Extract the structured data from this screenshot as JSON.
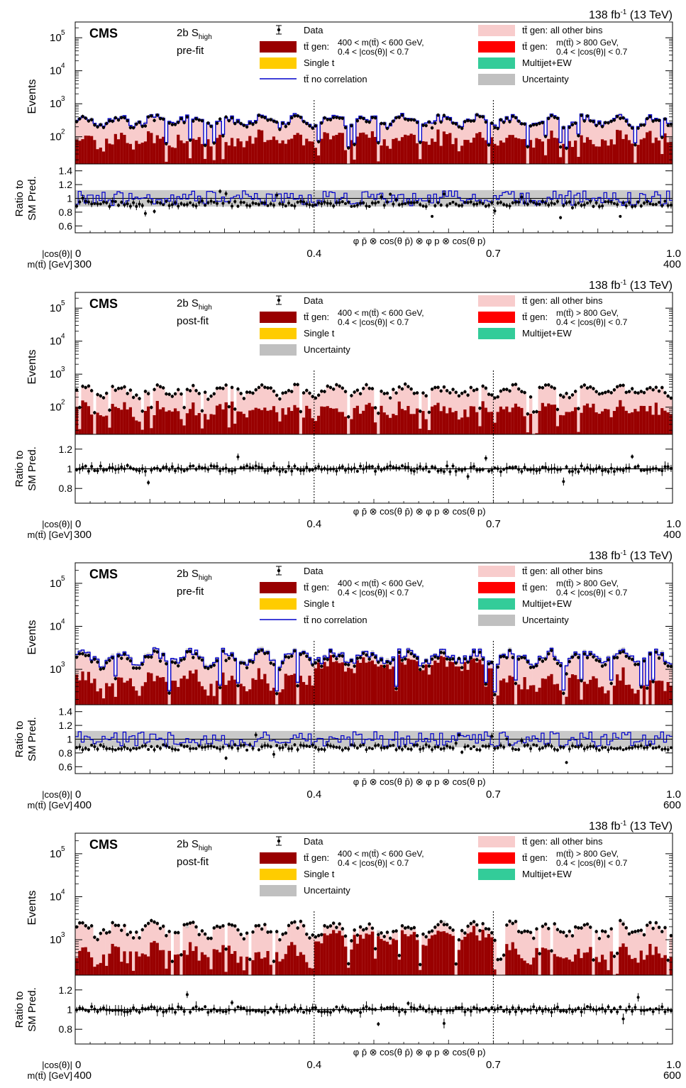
{
  "chart_data": [
    {
      "type": "bar",
      "lumi": "138 fb",
      "lumi_sup": "-1",
      "energy": "(13 TeV)",
      "experiment": "CMS",
      "category": "2b S",
      "category_sub": "high",
      "stage": "pre-fit",
      "ylabel": "Events",
      "ratio_ylabel": [
        "Ratio to",
        "SM Pred."
      ],
      "ylim": [
        15,
        300000
      ],
      "yscale": "log",
      "yticks": [
        {
          "v": 100,
          "e": "2"
        },
        {
          "v": 1000,
          "e": "3"
        },
        {
          "v": 10000,
          "e": "4"
        },
        {
          "v": 100000,
          "e": "5"
        }
      ],
      "ratio_ylim": [
        0.5,
        1.5
      ],
      "ratio_ticks": [
        "0.6",
        "0.8",
        "1",
        "1.2",
        "1.4"
      ],
      "xlabel": "φ p̄ ⊗ cos(θ p̄) ⊗ φ p ⊗ cos(θ p)",
      "dividers": [
        "0.4",
        "0.7"
      ],
      "bottom_label1": "|cos(θ)|",
      "bottom_label2": "m(tt̄) [GeV]",
      "x_left": "0",
      "x_right": "1.0",
      "m_low": "300",
      "m_high": "400",
      "nbins": 200,
      "base_level": 400,
      "data_ratio_center": 0.92,
      "band_half": 0.12,
      "no_corr": true,
      "legend": [
        {
          "col": 0,
          "key": "data",
          "label": "Data"
        },
        {
          "col": 0,
          "key": "darkred",
          "label": "tt̄ gen:",
          "extra1": "400 < m(tt̄) < 600 GeV,",
          "extra2": "0.4 < |cos(θ)| < 0.7"
        },
        {
          "col": 0,
          "key": "singlet",
          "label": "Single t"
        },
        {
          "col": 0,
          "key": "nocorr",
          "label": "tt̄ no correlation"
        },
        {
          "col": 1,
          "key": "pink",
          "label": "tt̄ gen: all other bins"
        },
        {
          "col": 1,
          "key": "red",
          "label": "tt̄ gen:",
          "extra1": "m(tt̄) > 800 GeV,",
          "extra2": "0.4 < |cos(θ)| < 0.7"
        },
        {
          "col": 1,
          "key": "multijet",
          "label": "Multijet+EW"
        },
        {
          "col": 1,
          "key": "unc",
          "label": "Uncertainty"
        }
      ]
    },
    {
      "type": "bar",
      "lumi": "138 fb",
      "lumi_sup": "-1",
      "energy": "(13 TeV)",
      "experiment": "CMS",
      "category": "2b S",
      "category_sub": "high",
      "stage": "post-fit",
      "ylabel": "Events",
      "ratio_ylabel": [
        "Ratio to",
        "SM Pred."
      ],
      "ylim": [
        15,
        300000
      ],
      "yscale": "log",
      "yticks": [
        {
          "v": 100,
          "e": "2"
        },
        {
          "v": 1000,
          "e": "3"
        },
        {
          "v": 10000,
          "e": "4"
        },
        {
          "v": 100000,
          "e": "5"
        }
      ],
      "ratio_ylim": [
        0.65,
        1.35
      ],
      "ratio_ticks": [
        "0.8",
        "1",
        "1.2"
      ],
      "xlabel": "φ p̄ ⊗ cos(θ p̄) ⊗ φ p ⊗ cos(θ p)",
      "dividers": [
        "0.4",
        "0.7"
      ],
      "bottom_label1": "|cos(θ)|",
      "bottom_label2": "m(tt̄) [GeV]",
      "x_left": "0",
      "x_right": "1.0",
      "m_low": "300",
      "m_high": "400",
      "nbins": 200,
      "base_level": 400,
      "data_ratio_center": 1.0,
      "band_half": 0.01,
      "no_corr": false,
      "legend": [
        {
          "col": 0,
          "key": "data",
          "label": "Data"
        },
        {
          "col": 0,
          "key": "darkred",
          "label": "tt̄ gen:",
          "extra1": "400 < m(tt̄) < 600 GeV,",
          "extra2": "0.4 < |cos(θ)| < 0.7"
        },
        {
          "col": 0,
          "key": "singlet",
          "label": "Single t"
        },
        {
          "col": 0,
          "key": "unc",
          "label": "Uncertainty"
        },
        {
          "col": 1,
          "key": "pink",
          "label": "tt̄ gen: all other bins"
        },
        {
          "col": 1,
          "key": "red",
          "label": "tt̄ gen:",
          "extra1": "m(tt̄) > 800 GeV,",
          "extra2": "0.4 < |cos(θ)| < 0.7"
        },
        {
          "col": 1,
          "key": "multijet",
          "label": "Multijet+EW"
        }
      ]
    },
    {
      "type": "bar",
      "lumi": "138 fb",
      "lumi_sup": "-1",
      "energy": "(13 TeV)",
      "experiment": "CMS",
      "category": "2b S",
      "category_sub": "high",
      "stage": "pre-fit",
      "ylabel": "Events",
      "ratio_ylabel": [
        "Ratio to",
        "SM Pred."
      ],
      "ylim": [
        150,
        300000
      ],
      "yscale": "log",
      "yticks": [
        {
          "v": 1000,
          "e": "3"
        },
        {
          "v": 10000,
          "e": "4"
        },
        {
          "v": 100000,
          "e": "5"
        }
      ],
      "ratio_ylim": [
        0.5,
        1.5
      ],
      "ratio_ticks": [
        "0.6",
        "0.8",
        "1",
        "1.2",
        "1.4"
      ],
      "xlabel": "φ p̄ ⊗ cos(θ p̄) ⊗ φ p ⊗ cos(θ p)",
      "dividers": [
        "0.4",
        "0.7"
      ],
      "bottom_label1": "|cos(θ)|",
      "bottom_label2": "m(tt̄) [GeV]",
      "x_left": "0",
      "x_right": "1.0",
      "m_low": "400",
      "m_high": "600",
      "nbins": 200,
      "base_level": 2500,
      "data_ratio_center": 0.88,
      "band_half": 0.12,
      "no_corr": true,
      "middle_dark": true,
      "legend": [
        {
          "col": 0,
          "key": "data",
          "label": "Data"
        },
        {
          "col": 0,
          "key": "darkred",
          "label": "tt̄ gen:",
          "extra1": "400 < m(tt̄) < 600 GeV,",
          "extra2": "0.4 < |cos(θ)| < 0.7"
        },
        {
          "col": 0,
          "key": "singlet",
          "label": "Single t"
        },
        {
          "col": 0,
          "key": "nocorr",
          "label": "tt̄ no correlation"
        },
        {
          "col": 1,
          "key": "pink",
          "label": "tt̄ gen: all other bins"
        },
        {
          "col": 1,
          "key": "red",
          "label": "tt̄ gen:",
          "extra1": "m(tt̄) > 800 GeV,",
          "extra2": "0.4 < |cos(θ)| < 0.7"
        },
        {
          "col": 1,
          "key": "multijet",
          "label": "Multijet+EW"
        },
        {
          "col": 1,
          "key": "unc",
          "label": "Uncertainty"
        }
      ]
    },
    {
      "type": "bar",
      "lumi": "138 fb",
      "lumi_sup": "-1",
      "energy": "(13 TeV)",
      "experiment": "CMS",
      "category": "2b S",
      "category_sub": "high",
      "stage": "post-fit",
      "ylabel": "Events",
      "ratio_ylabel": [
        "Ratio to",
        "SM Pred."
      ],
      "ylim": [
        150,
        300000
      ],
      "yscale": "log",
      "yticks": [
        {
          "v": 1000,
          "e": "3"
        },
        {
          "v": 10000,
          "e": "4"
        },
        {
          "v": 100000,
          "e": "5"
        }
      ],
      "ratio_ylim": [
        0.65,
        1.35
      ],
      "ratio_ticks": [
        "0.8",
        "1",
        "1.2"
      ],
      "xlabel": "φ p̄ ⊗ cos(θ p̄) ⊗ φ p ⊗ cos(θ p)",
      "dividers": [
        "0.4",
        "0.7"
      ],
      "bottom_label1": "|cos(θ)|",
      "bottom_label2": "m(tt̄) [GeV]",
      "x_left": "0",
      "x_right": "1.0",
      "m_low": "400",
      "m_high": "600",
      "nbins": 200,
      "base_level": 2200,
      "data_ratio_center": 1.0,
      "band_half": 0.01,
      "no_corr": false,
      "middle_dark": true,
      "legend": [
        {
          "col": 0,
          "key": "data",
          "label": "Data"
        },
        {
          "col": 0,
          "key": "darkred",
          "label": "tt̄ gen:",
          "extra1": "400 < m(tt̄) < 600 GeV,",
          "extra2": "0.4 < |cos(θ)| < 0.7"
        },
        {
          "col": 0,
          "key": "singlet",
          "label": "Single t"
        },
        {
          "col": 0,
          "key": "unc",
          "label": "Uncertainty"
        },
        {
          "col": 1,
          "key": "pink",
          "label": "tt̄ gen: all other bins"
        },
        {
          "col": 1,
          "key": "red",
          "label": "tt̄ gen:",
          "extra1": "m(tt̄) > 800 GeV,",
          "extra2": "0.4 < |cos(θ)| < 0.7"
        },
        {
          "col": 1,
          "key": "multijet",
          "label": "Multijet+EW"
        }
      ]
    }
  ],
  "colors": {
    "pink": "#f8cccc",
    "darkred": "#990000",
    "singlet": "#ffcc00",
    "red": "#ff0000",
    "multijet": "#33cc99",
    "unc": "#c0c0c0",
    "nocorr": "#0000cc",
    "data": "#000000"
  }
}
